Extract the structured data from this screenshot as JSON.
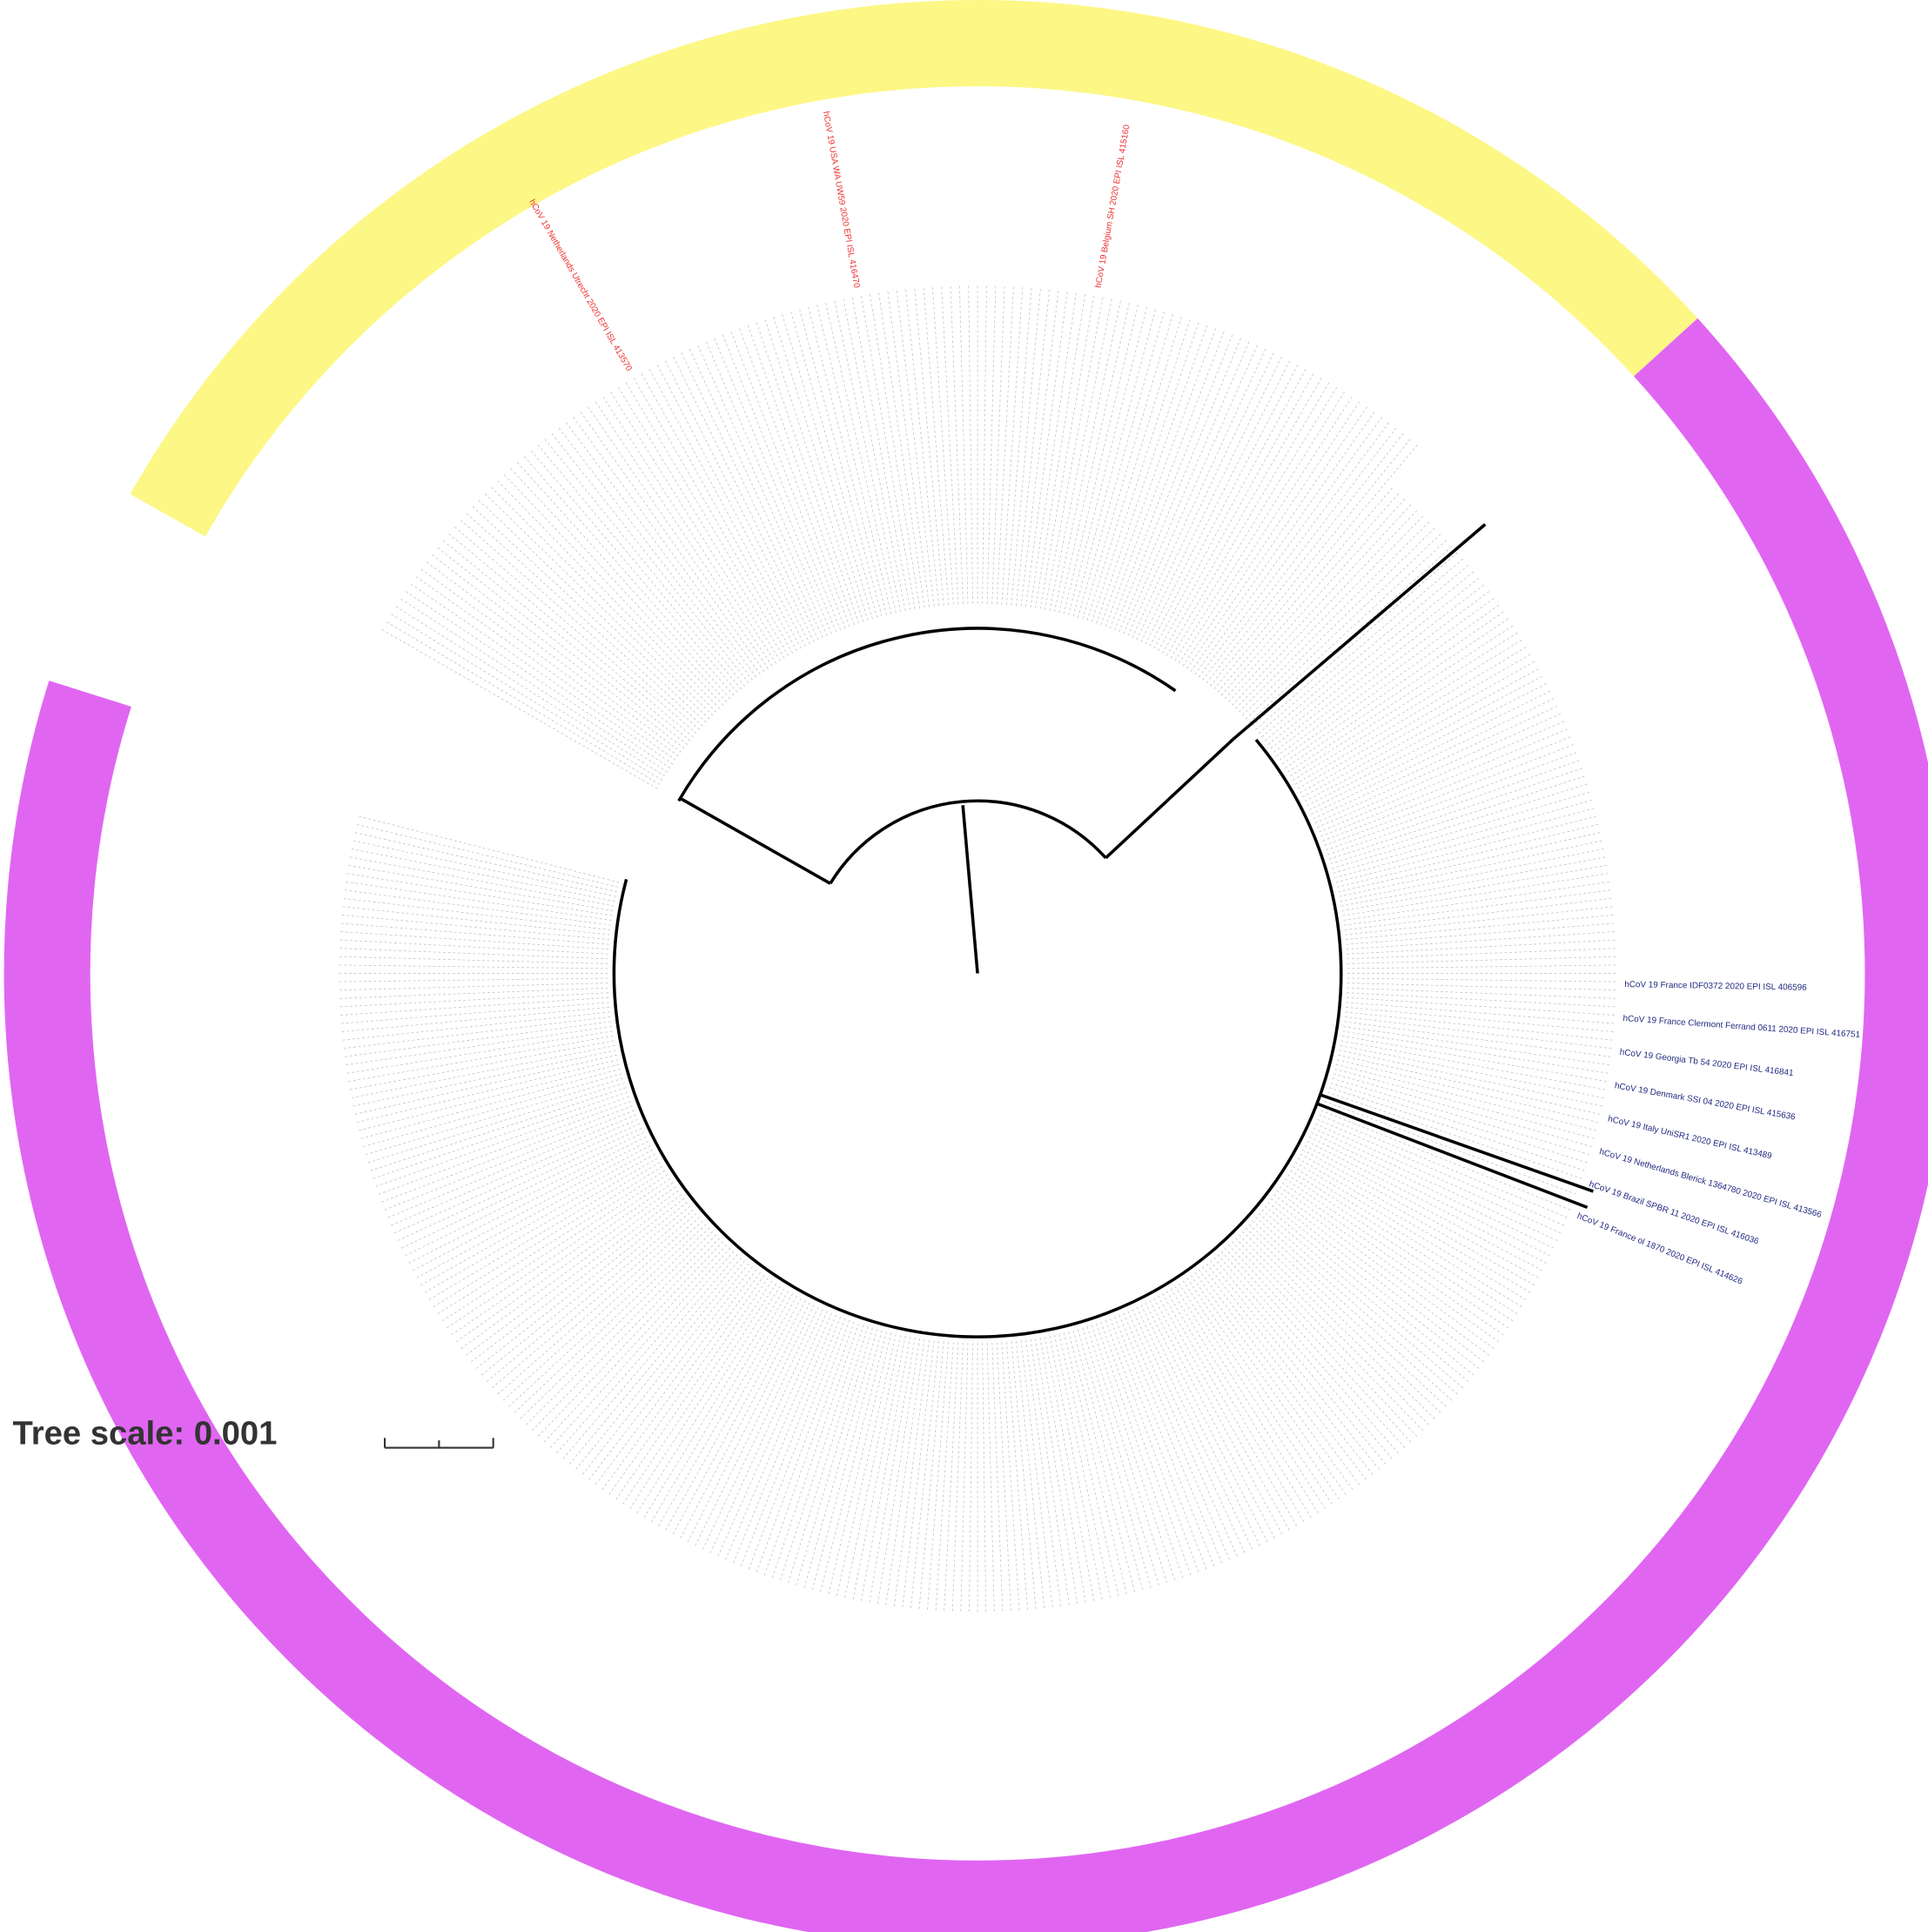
{
  "tree_scale": "Tree scale: 0.001",
  "leaves": {
    "red": [
      "hCoV 19 Netherlands Utrecht 2020 EPI ISL 413570",
      "hCoV 19 USA WA UW59 2020 EPI ISL 416470",
      "hCoV 19 Belgium SH 2020 EPI ISL 415160"
    ],
    "blue": [
      "hCoV 19 France IDF0372 2020 EPI ISL 406596",
      "hCoV 19 France Clermont Ferrand 0611 2020 EPI ISL 416751",
      "hCoV 19 Georgia Tb 54 2020 EPI ISL 416841",
      "hCoV 19 Denmark SSI 04 2020 EPI ISL 415636",
      "hCoV 19 Italy UniSR1 2020 EPI ISL 413489",
      "hCoV 19 Netherlands Blerick 1364780 2020 EPI ISL 413566",
      "hCoV 19 Brazil SPBR 11 2020 EPI ISL 416036",
      "hCoV 19 France ol 1870 2020 EPI ISL 414626"
    ]
  }
}
